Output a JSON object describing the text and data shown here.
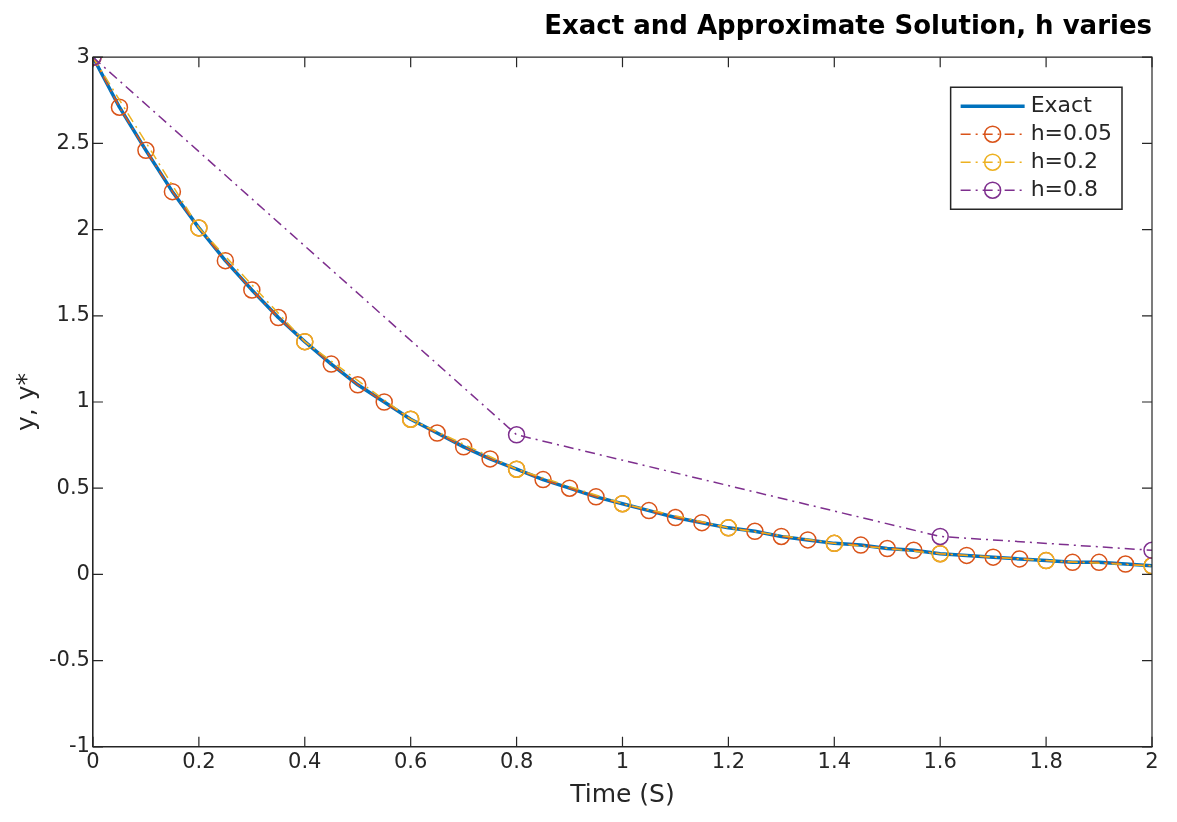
{
  "chart_data": {
    "type": "line",
    "title": "Exact and Approximate Solution, h varies",
    "xlabel": "Time (S)",
    "ylabel": "y, y*",
    "xlim": [
      0,
      2
    ],
    "xticks": [
      0,
      0.2,
      0.4,
      0.6,
      0.8,
      1,
      1.2,
      1.4,
      1.6,
      1.8,
      2
    ],
    "ylim": [
      -1,
      3
    ],
    "yticks": [
      -1,
      -0.5,
      0,
      0.5,
      1,
      1.5,
      2,
      2.5,
      3
    ],
    "grid": false,
    "legend": "top right",
    "marker": "circle",
    "series": [
      {
        "name": "Exact",
        "color": "#0072bd",
        "marker": "none",
        "line_style": "solid",
        "x": [
          0,
          0.05,
          0.1,
          0.15,
          0.2,
          0.25,
          0.3,
          0.35,
          0.4,
          0.45,
          0.5,
          0.55,
          0.6,
          0.65,
          0.7,
          0.75,
          0.8,
          0.85,
          0.9,
          0.95,
          1,
          1.05,
          1.1,
          1.15,
          1.2,
          1.25,
          1.3,
          1.35,
          1.4,
          1.45,
          1.5,
          1.55,
          1.6,
          1.65,
          1.7,
          1.75,
          1.8,
          1.85,
          1.9,
          1.95,
          2
        ],
        "values": [
          3.0,
          2.71,
          2.46,
          2.22,
          2.01,
          1.82,
          1.65,
          1.49,
          1.35,
          1.22,
          1.1,
          1.0,
          0.9,
          0.82,
          0.74,
          0.67,
          0.61,
          0.55,
          0.5,
          0.45,
          0.41,
          0.37,
          0.33,
          0.3,
          0.27,
          0.25,
          0.22,
          0.2,
          0.18,
          0.17,
          0.15,
          0.14,
          0.12,
          0.11,
          0.1,
          0.09,
          0.08,
          0.07,
          0.07,
          0.06,
          0.05
        ]
      },
      {
        "name": "h=0.05",
        "color": "#d95319",
        "line_style": "dashed",
        "x": [
          0,
          0.05,
          0.1,
          0.15,
          0.2,
          0.25,
          0.3,
          0.35,
          0.4,
          0.45,
          0.5,
          0.55,
          0.6,
          0.65,
          0.7,
          0.75,
          0.8,
          0.85,
          0.9,
          0.95,
          1,
          1.05,
          1.1,
          1.15,
          1.2,
          1.25,
          1.3,
          1.35,
          1.4,
          1.45,
          1.5,
          1.55,
          1.6,
          1.65,
          1.7,
          1.75,
          1.8,
          1.85,
          1.9,
          1.95,
          2
        ],
        "values": [
          3.0,
          2.71,
          2.46,
          2.22,
          2.01,
          1.82,
          1.65,
          1.49,
          1.35,
          1.22,
          1.1,
          1.0,
          0.9,
          0.82,
          0.74,
          0.67,
          0.61,
          0.55,
          0.5,
          0.45,
          0.41,
          0.37,
          0.33,
          0.3,
          0.27,
          0.25,
          0.22,
          0.2,
          0.18,
          0.17,
          0.15,
          0.14,
          0.12,
          0.11,
          0.1,
          0.09,
          0.08,
          0.07,
          0.07,
          0.06,
          0.05
        ]
      },
      {
        "name": "h=0.2",
        "color": "#edb120",
        "line_style": "dashed",
        "x": [
          0,
          0.2,
          0.4,
          0.6,
          0.8,
          1,
          1.2,
          1.4,
          1.6,
          1.8,
          2
        ],
        "values": [
          3.0,
          2.01,
          1.35,
          0.9,
          0.61,
          0.41,
          0.27,
          0.18,
          0.12,
          0.08,
          0.05
        ]
      },
      {
        "name": "h=0.8",
        "color": "#7e2f8e",
        "line_style": "dashed",
        "x": [
          0,
          0.8,
          1.6,
          2
        ],
        "values": [
          3.0,
          0.81,
          0.22,
          0.14
        ]
      }
    ]
  }
}
